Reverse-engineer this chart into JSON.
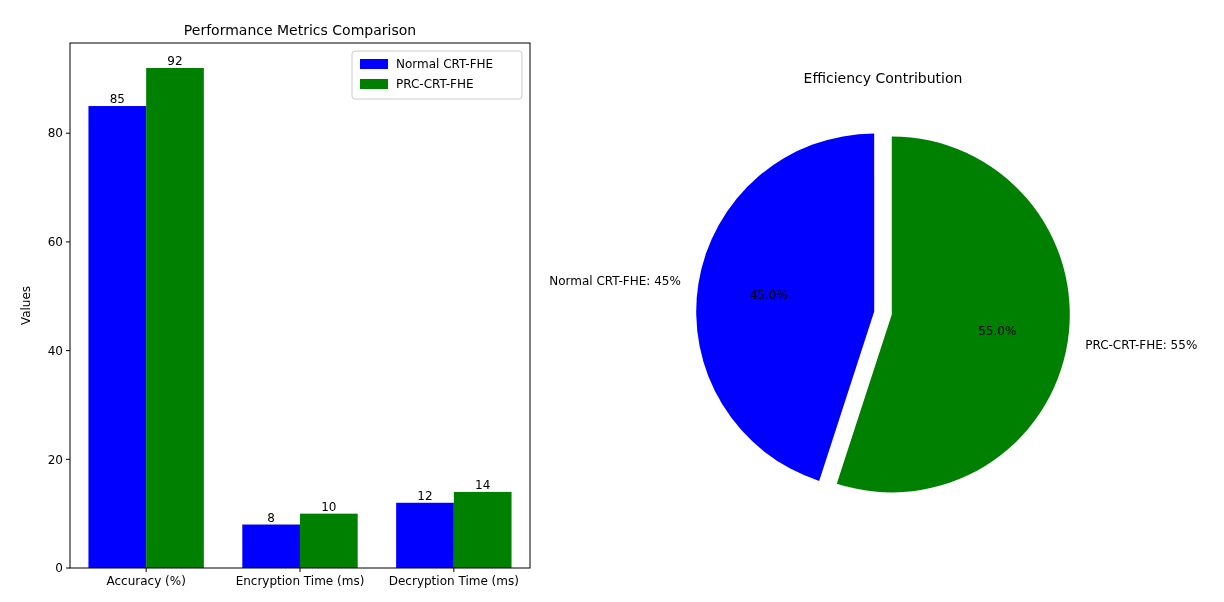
{
  "chart_data": [
    {
      "type": "bar",
      "title": "Performance Metrics Comparison",
      "ylabel": "Values",
      "categories": [
        "Accuracy (%)",
        "Encryption Time (ms)",
        "Decryption Time (ms)"
      ],
      "series": [
        {
          "name": "Normal CRT-FHE",
          "color": "#0000ff",
          "values": [
            85,
            8,
            12
          ]
        },
        {
          "name": "PRC-CRT-FHE",
          "color": "#008000",
          "values": [
            92,
            10,
            14
          ]
        }
      ],
      "ylim": [
        0,
        96.6
      ],
      "yticks": [
        0,
        20,
        40,
        60,
        80
      ],
      "data_labels": true,
      "legend": "top right",
      "grid": false
    },
    {
      "type": "pie",
      "title": "Efficiency Contribution",
      "categories": [
        "Normal CRT-FHE: 45%",
        "PRC-CRT-FHE: 55%"
      ],
      "values": [
        45,
        55
      ],
      "colors": [
        "#0000ff",
        "#008000"
      ],
      "value_labels": [
        "45.0%",
        "55.0%"
      ]
    }
  ]
}
